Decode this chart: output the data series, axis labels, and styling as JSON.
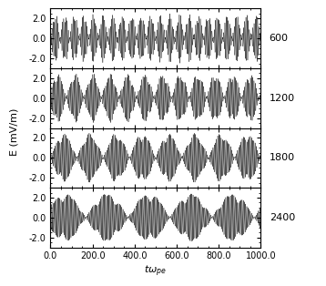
{
  "title": "",
  "xlabel": "tω_{pe}",
  "ylabel": "E (mV/m)",
  "t_start": 0.0,
  "t_end": 1000.0,
  "xlim": [
    0.0,
    1000.0
  ],
  "ylim": [
    -3.0,
    3.0
  ],
  "yticks": [
    -2.0,
    0.0,
    2.0
  ],
  "xticks": [
    0.0,
    200.0,
    400.0,
    600.0,
    800.0,
    1000.0
  ],
  "panel_labels": [
    600,
    1200,
    1800,
    2400
  ],
  "amplitude": 2.5,
  "background_color": "#ffffff",
  "line_color": "#000000",
  "fontsize_tick": 7,
  "fontsize_label": 8,
  "fontsize_panel": 8,
  "n_points": 12000,
  "panels": [
    {
      "carrier_freq": 0.18,
      "env_freqs": [
        0.022,
        0.041,
        0.065
      ],
      "env_amps": [
        1.0,
        0.5,
        0.3
      ],
      "env_phases": [
        0.0,
        0.8,
        1.6
      ],
      "phase": 0.0
    },
    {
      "carrier_freq": 0.18,
      "env_freqs": [
        0.012,
        0.025,
        0.048
      ],
      "env_amps": [
        1.0,
        0.5,
        0.25
      ],
      "env_phases": [
        0.3,
        1.2,
        2.0
      ],
      "phase": 0.5
    },
    {
      "carrier_freq": 0.18,
      "env_freqs": [
        0.008,
        0.018,
        0.034
      ],
      "env_amps": [
        1.0,
        0.4,
        0.2
      ],
      "env_phases": [
        0.0,
        0.5,
        1.0
      ],
      "phase": 1.0
    },
    {
      "carrier_freq": 0.18,
      "env_freqs": [
        0.005,
        0.012,
        0.024
      ],
      "env_amps": [
        1.0,
        0.35,
        0.15
      ],
      "env_phases": [
        0.5,
        1.0,
        1.8
      ],
      "phase": 1.5
    }
  ]
}
